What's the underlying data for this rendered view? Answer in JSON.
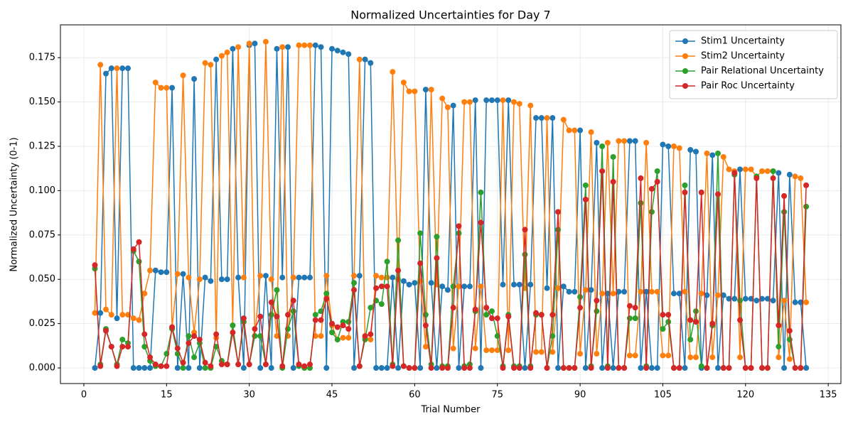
{
  "chart_data": {
    "type": "line",
    "title": "Normalized Uncertainties for Day 7",
    "xlabel": "Trial Number",
    "ylabel": "Normalized Uncertainty (0-1)",
    "x": [
      2,
      3,
      4,
      5,
      6,
      7,
      8,
      9,
      10,
      11,
      12,
      13,
      14,
      15,
      16,
      17,
      18,
      19,
      20,
      21,
      22,
      23,
      24,
      25,
      26,
      27,
      28,
      29,
      30,
      31,
      32,
      33,
      34,
      35,
      36,
      37,
      38,
      39,
      40,
      41,
      42,
      43,
      44,
      45,
      46,
      47,
      48,
      49,
      50,
      51,
      52,
      53,
      54,
      55,
      56,
      57,
      58,
      59,
      60,
      61,
      62,
      63,
      64,
      65,
      66,
      67,
      68,
      69,
      70,
      71,
      72,
      73,
      74,
      75,
      76,
      77,
      78,
      79,
      80,
      81,
      82,
      83,
      84,
      85,
      86,
      87,
      88,
      89,
      90,
      91,
      92,
      93,
      94,
      95,
      96,
      97,
      98,
      99,
      100,
      101,
      102,
      103,
      104,
      105,
      106,
      107,
      108,
      109,
      110,
      111,
      112,
      113,
      114,
      115,
      116,
      117,
      118,
      119,
      120,
      121,
      122,
      123,
      124,
      125,
      126,
      127,
      128,
      129,
      130,
      131
    ],
    "series": [
      {
        "name": "Stim1 Uncertainty",
        "color": "#1f77b4",
        "values": [
          0,
          0.031,
          0.166,
          0.169,
          0.028,
          0.169,
          0.169,
          0,
          0,
          0,
          0,
          0.055,
          0.054,
          0.054,
          0.158,
          0,
          0.053,
          0,
          0.163,
          0,
          0.051,
          0.049,
          0.174,
          0.05,
          0.05,
          0.18,
          0.051,
          0,
          0.182,
          0.183,
          0,
          0.052,
          0,
          0.18,
          0.051,
          0.181,
          0,
          0.051,
          0.051,
          0.051,
          0.182,
          0.181,
          0,
          0.18,
          0.179,
          0.178,
          0.177,
          0,
          0.052,
          0.174,
          0.172,
          0,
          0,
          0,
          0.051,
          0,
          0.049,
          0.047,
          0.048,
          0,
          0.157,
          0.048,
          0,
          0.046,
          0.044,
          0.148,
          0,
          0.046,
          0.046,
          0.151,
          0,
          0.151,
          0.151,
          0.151,
          0.047,
          0.151,
          0.047,
          0.047,
          0,
          0.047,
          0.141,
          0.141,
          0.045,
          0.141,
          0,
          0.046,
          0.043,
          0.043,
          0.134,
          0,
          0.044,
          0.127,
          0,
          0.042,
          0,
          0.043,
          0.043,
          0.128,
          0.128,
          0,
          0.043,
          0,
          0,
          0.126,
          0.125,
          0.042,
          0.042,
          0,
          0.123,
          0.122,
          0,
          0.041,
          0.12,
          0,
          0.041,
          0.039,
          0.039,
          0.112,
          0.039,
          0.039,
          0.038,
          0.039,
          0.039,
          0.038,
          0.11,
          0,
          0.109,
          0.037,
          0.037,
          0
        ]
      },
      {
        "name": "Stim2 Uncertainty",
        "color": "#ff7f0e",
        "values": [
          0.031,
          0.171,
          0.033,
          0.03,
          0.169,
          0.03,
          0.03,
          0.028,
          0.027,
          0.042,
          0.055,
          0.161,
          0.158,
          0.158,
          0.023,
          0.053,
          0.165,
          0.051,
          0.02,
          0.05,
          0.172,
          0.171,
          0.017,
          0.176,
          0.178,
          0.024,
          0.181,
          0.051,
          0.183,
          0.018,
          0.052,
          0.184,
          0.05,
          0.018,
          0.181,
          0.018,
          0.051,
          0.182,
          0.182,
          0.182,
          0.018,
          0.018,
          0.052,
          0.024,
          0.016,
          0.017,
          0.017,
          0.052,
          0.174,
          0.017,
          0.016,
          0.052,
          0.051,
          0.051,
          0.167,
          0.05,
          0.161,
          0.156,
          0.156,
          0.049,
          0.012,
          0.157,
          0.047,
          0.152,
          0.147,
          0.011,
          0.046,
          0.15,
          0.15,
          0.011,
          0.046,
          0.01,
          0.01,
          0.01,
          0.151,
          0.01,
          0.15,
          0.149,
          0.045,
          0.148,
          0.009,
          0.009,
          0.141,
          0.009,
          0.045,
          0.14,
          0.134,
          0.134,
          0.008,
          0.044,
          0.133,
          0.008,
          0.042,
          0.127,
          0.042,
          0.128,
          0.128,
          0.007,
          0.007,
          0.043,
          0.127,
          0.043,
          0.043,
          0.007,
          0.007,
          0.125,
          0.124,
          0.043,
          0.006,
          0.006,
          0.042,
          0.121,
          0.006,
          0.041,
          0.119,
          0.112,
          0.111,
          0.006,
          0.112,
          0.112,
          0.108,
          0.111,
          0.111,
          0.111,
          0.006,
          0.038,
          0.005,
          0.108,
          0.107,
          0.037
        ]
      },
      {
        "name": "Pair Relational Uncertainty",
        "color": "#2ca02c",
        "values": [
          0.056,
          0.002,
          0.022,
          0.012,
          0.002,
          0.016,
          0.014,
          0.066,
          0.06,
          0.012,
          0.004,
          0.001,
          0.001,
          0.008,
          0.022,
          0.008,
          0,
          0.018,
          0.006,
          0.014,
          0,
          0,
          0.012,
          0.004,
          0.002,
          0.024,
          0.002,
          0.026,
          0.002,
          0.018,
          0.018,
          0.002,
          0.03,
          0.044,
          0,
          0.022,
          0.032,
          0.001,
          0,
          0,
          0.03,
          0.032,
          0.042,
          0.02,
          0.016,
          0.026,
          0.026,
          0.048,
          0.001,
          0.016,
          0.034,
          0.038,
          0.036,
          0.06,
          0.002,
          0.072,
          0.001,
          0,
          0,
          0.076,
          0.03,
          0.002,
          0.074,
          0.001,
          0.001,
          0.046,
          0.076,
          0.001,
          0.002,
          0.032,
          0.099,
          0.03,
          0.032,
          0.018,
          0.001,
          0.03,
          0.001,
          0.001,
          0.064,
          0.001,
          0.03,
          0.03,
          0,
          0.018,
          0.078,
          0,
          0,
          0,
          0.04,
          0.103,
          0.001,
          0.032,
          0.125,
          0.001,
          0.119,
          0,
          0,
          0.028,
          0.028,
          0.093,
          0.001,
          0.088,
          0.111,
          0.022,
          0.026,
          0,
          0,
          0.103,
          0.016,
          0.032,
          0.001,
          0,
          0.024,
          0.121,
          0,
          0,
          0.109,
          0.038,
          0,
          0,
          0.108,
          0,
          0,
          0.111,
          0.012,
          0.088,
          0.016,
          0,
          0,
          0.091
        ]
      },
      {
        "name": "Pair Roc Uncertainty",
        "color": "#d62728",
        "values": [
          0.058,
          0.001,
          0.021,
          0.012,
          0.001,
          0.012,
          0.012,
          0.067,
          0.071,
          0.019,
          0.006,
          0.002,
          0.001,
          0.001,
          0.023,
          0.011,
          0.003,
          0.014,
          0.018,
          0.016,
          0.003,
          0.001,
          0.019,
          0.002,
          0.002,
          0.02,
          0.002,
          0.028,
          0.002,
          0.022,
          0.029,
          0.002,
          0.037,
          0.029,
          0.001,
          0.03,
          0.038,
          0.002,
          0.001,
          0.002,
          0.027,
          0.027,
          0.039,
          0.025,
          0.023,
          0.024,
          0.022,
          0.044,
          0.001,
          0.018,
          0.019,
          0.045,
          0.046,
          0.046,
          0.001,
          0.055,
          0.001,
          0,
          0,
          0.059,
          0.024,
          0,
          0.062,
          0,
          0,
          0.034,
          0.08,
          0,
          0,
          0.033,
          0.082,
          0.034,
          0.028,
          0.028,
          0,
          0.029,
          0,
          0,
          0.078,
          0,
          0.031,
          0.03,
          0,
          0.03,
          0.088,
          0,
          0,
          0,
          0.034,
          0.095,
          0,
          0.038,
          0.111,
          0,
          0.105,
          0,
          0,
          0.035,
          0.034,
          0.107,
          0,
          0.101,
          0.105,
          0.03,
          0.03,
          0,
          0,
          0.099,
          0.027,
          0.026,
          0.099,
          0,
          0.025,
          0.098,
          0,
          0,
          0.11,
          0.027,
          0,
          0,
          0.107,
          0,
          0,
          0.107,
          0.024,
          0.097,
          0.021,
          0,
          0,
          0.103
        ]
      }
    ],
    "xlim": [
      -4.25,
      137.3
    ],
    "ylim": [
      -0.0088,
      0.1935
    ],
    "xticks": [
      0,
      15,
      30,
      45,
      60,
      75,
      90,
      105,
      120,
      135
    ],
    "yticks": [
      {
        "value": 0,
        "label": "0.000"
      },
      {
        "value": 0.025,
        "label": "0.025"
      },
      {
        "value": 0.05,
        "label": "0.050"
      },
      {
        "value": 0.075,
        "label": "0.075"
      },
      {
        "value": 0.1,
        "label": "0.100"
      },
      {
        "value": 0.125,
        "label": "0.125"
      },
      {
        "value": 0.15,
        "label": "0.150"
      },
      {
        "value": 0.175,
        "label": "0.175"
      }
    ],
    "grid": true,
    "legend": "upper right"
  }
}
